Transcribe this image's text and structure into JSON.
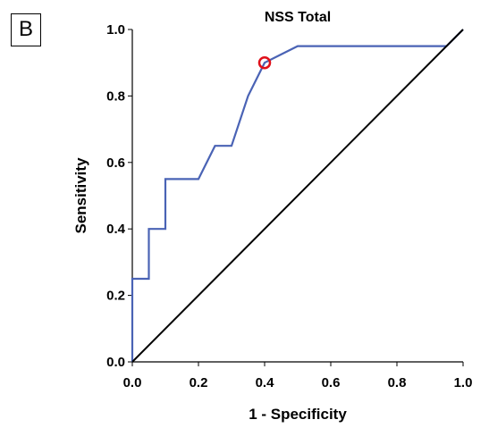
{
  "panel_label": "B",
  "chart_data": {
    "type": "line",
    "title": "NSS Total",
    "xlabel": "1 - Specificity",
    "ylabel": "Sensitivity",
    "xlim": [
      0,
      1
    ],
    "ylim": [
      0,
      1
    ],
    "xticks": [
      "0.0",
      "0.2",
      "0.4",
      "0.6",
      "0.8",
      "1.0"
    ],
    "yticks": [
      "0.0",
      "0.2",
      "0.4",
      "0.6",
      "0.8",
      "1.0"
    ],
    "grid": false,
    "colors": {
      "roc": "#4a63b5",
      "reference": "#000000",
      "marker": "#e0101a"
    },
    "series": [
      {
        "role": "roc",
        "x": [
          0,
          0,
          0.05,
          0.05,
          0.1,
          0.1,
          0.2,
          0.25,
          0.3,
          0.35,
          0.4,
          0.45,
          0.5,
          0.95,
          1.0
        ],
        "y": [
          0,
          0.25,
          0.25,
          0.4,
          0.4,
          0.55,
          0.55,
          0.65,
          0.65,
          0.8,
          0.9,
          0.925,
          0.95,
          0.95,
          1.0
        ]
      },
      {
        "role": "reference",
        "x": [
          0,
          1
        ],
        "y": [
          0,
          1
        ]
      }
    ],
    "annotations": [
      {
        "type": "circle-marker",
        "x": 0.4,
        "y": 0.9
      }
    ]
  }
}
